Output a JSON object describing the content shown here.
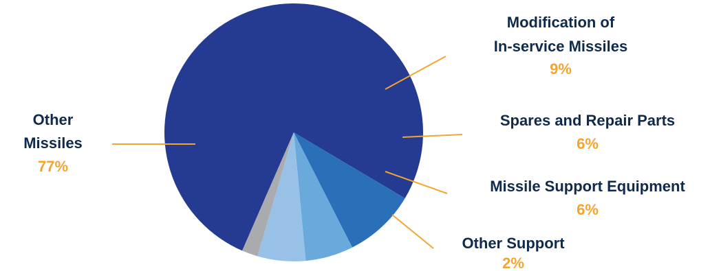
{
  "chart_data": {
    "type": "pie",
    "title": "",
    "slices": [
      {
        "label": "Other Missiles",
        "value": 77,
        "value_label": "77%",
        "color": "#253b91"
      },
      {
        "label": "Modification of In-service Missiles",
        "value": 9,
        "value_label": "9%",
        "color": "#2970b8"
      },
      {
        "label": "Spares and Repair Parts",
        "value": 6,
        "value_label": "6%",
        "color": "#6aa9dc"
      },
      {
        "label": "Missile Support Equipment",
        "value": 6,
        "value_label": "6%",
        "color": "#98c1e8"
      },
      {
        "label": "Other Support",
        "value": 2,
        "value_label": "2%",
        "color": "#a9abae"
      }
    ],
    "label_lines": [
      {
        "slice": 0,
        "lines": [
          "Other",
          "Missiles"
        ]
      },
      {
        "slice": 1,
        "lines": [
          "Modification of",
          "In-service Missiles"
        ]
      },
      {
        "slice": 2,
        "lines": [
          "Spares and Repair Parts"
        ]
      },
      {
        "slice": 3,
        "lines": [
          "Missile Support Equipment"
        ]
      },
      {
        "slice": 4,
        "lines": [
          "Other Support"
        ]
      }
    ],
    "label_color": "#0f2a4a",
    "value_color": "#f2a531",
    "leader_color": "#f2a531"
  }
}
